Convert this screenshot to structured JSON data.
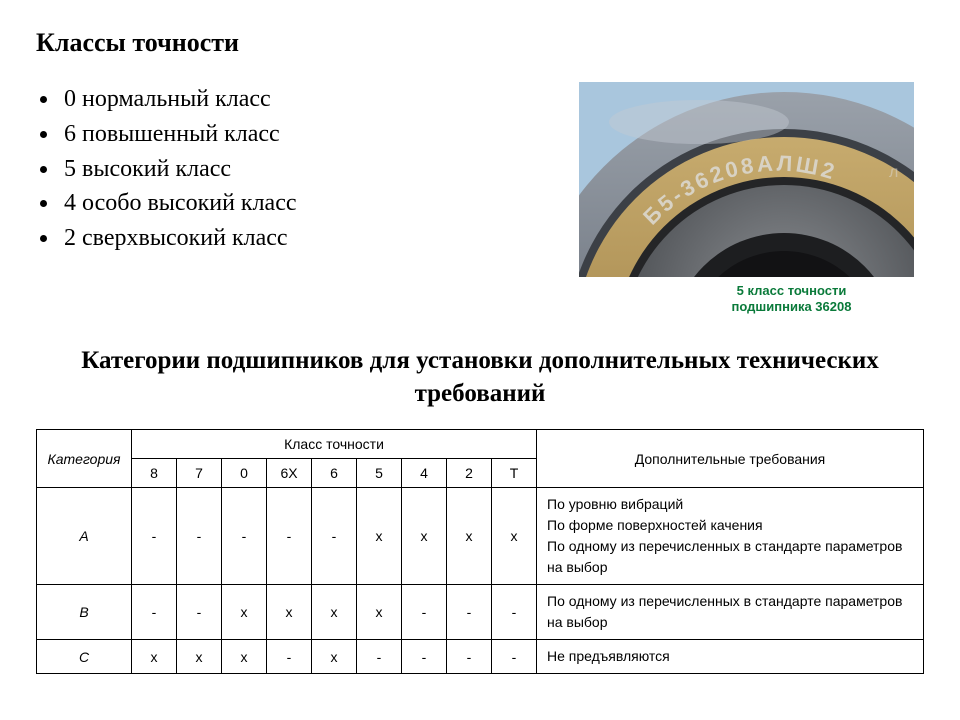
{
  "title": "Классы точности",
  "bullets": [
    "0 нормальный класс",
    "6 повышенный класс",
    "5 высокий класс",
    "4 особо высокий класс",
    "2 сверхвысокий класс"
  ],
  "bearing": {
    "engraving": "Б5-36208АЛШ2",
    "caption_line1": "5 класс точности",
    "caption_line2": "подшипника 36208",
    "colors": {
      "sky": "#a9c6dd",
      "outer_ring": "#7f8791",
      "chamfer_dark": "#3c4046",
      "brass": "#a78a4f",
      "brass_highlight": "#c7ab6e",
      "inner_dark": "#2b2c2e",
      "inner_mid": "#5a5d60",
      "bore": "#17181a",
      "engraving_color": "#d8d2c4",
      "caption_color": "#0a7a3a"
    }
  },
  "subtitle": "Категории подшипников для установки дополнительных технических требований",
  "table": {
    "header_category": "Категория",
    "header_precision": "Класс точности",
    "header_requirements": "Дополнительные требования",
    "precision_cols": [
      "8",
      "7",
      "0",
      "6Х",
      "6",
      "5",
      "4",
      "2",
      "Т"
    ],
    "rows": [
      {
        "cat": "А",
        "marks": [
          "-",
          "-",
          "-",
          "-",
          "-",
          "х",
          "х",
          "х",
          "х"
        ],
        "req": "По уровню вибраций\nПо форме поверхностей качения\nПо одному из перечисленных в стандарте параметров на выбор"
      },
      {
        "cat": "В",
        "marks": [
          "-",
          "-",
          "х",
          "х",
          "х",
          "х",
          "-",
          "-",
          "-"
        ],
        "req": "По одному из перечисленных в стандарте параметров на выбор"
      },
      {
        "cat": "С",
        "marks": [
          "х",
          "х",
          "х",
          "-",
          "х",
          "-",
          "-",
          "-",
          "-"
        ],
        "req": "Не предъявляются"
      }
    ],
    "styling": {
      "border_color": "#000000",
      "font_family": "Arial",
      "header_fontsize": 14,
      "body_fontsize": 14,
      "cell_padding": "6px 10px"
    }
  }
}
